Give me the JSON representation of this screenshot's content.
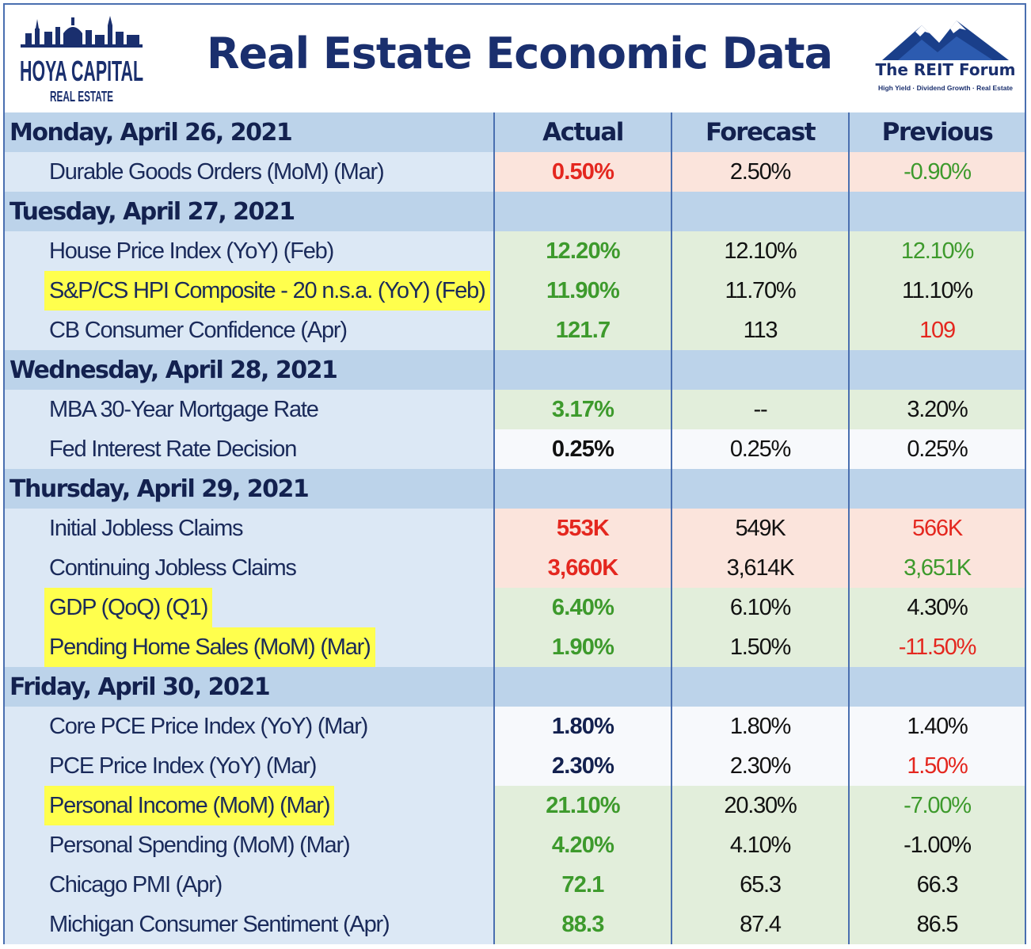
{
  "header": {
    "title": "Real Estate Economic Data",
    "left_logo": {
      "line1": "HOYA CAPITAL",
      "line2": "REAL ESTATE"
    },
    "right_logo": {
      "name": "The REIT Forum",
      "tagline": "High Yield · Dividend Growth · Real Estate"
    }
  },
  "columns": [
    "Actual",
    "Forecast",
    "Previous"
  ],
  "colors": {
    "red": "#e4271f",
    "green": "#3d9a2c",
    "navy": "#13214f",
    "highlight": "#ffff4d",
    "day_band": "#bcd3ea"
  },
  "days": [
    {
      "label": "Monday, April 26, 2021"
    },
    {
      "label": "Tuesday, April 27, 2021"
    },
    {
      "label": "Wednesday, April 28, 2021"
    },
    {
      "label": "Thursday, April 29, 2021"
    },
    {
      "label": "Friday, April 30, 2021"
    }
  ],
  "rows": [
    {
      "name": "Durable Goods Orders (MoM) (Mar)",
      "actual": "0.50%",
      "forecast": "2.50%",
      "previous": "-0.90%",
      "highlighted": false
    },
    {
      "name": "House Price Index (YoY) (Feb)",
      "actual": "12.20%",
      "forecast": "12.10%",
      "previous": "12.10%",
      "highlighted": false
    },
    {
      "name": "S&P/CS HPI Composite - 20 n.s.a. (YoY) (Feb)",
      "actual": "11.90%",
      "forecast": "11.70%",
      "previous": "11.10%",
      "highlighted": true
    },
    {
      "name": "CB Consumer Confidence (Apr)",
      "actual": "121.7",
      "forecast": "113",
      "previous": "109",
      "highlighted": false
    },
    {
      "name": "MBA 30-Year Mortgage Rate",
      "actual": "3.17%",
      "forecast": "--",
      "previous": "3.20%",
      "highlighted": false
    },
    {
      "name": "Fed Interest Rate Decision",
      "actual": "0.25%",
      "forecast": "0.25%",
      "previous": "0.25%",
      "highlighted": false
    },
    {
      "name": "Initial Jobless Claims",
      "actual": "553K",
      "forecast": "549K",
      "previous": "566K",
      "highlighted": false
    },
    {
      "name": "Continuing Jobless Claims",
      "actual": "3,660K",
      "forecast": "3,614K",
      "previous": "3,651K",
      "highlighted": false
    },
    {
      "name": "GDP (QoQ) (Q1)",
      "actual": "6.40%",
      "forecast": "6.10%",
      "previous": "4.30%",
      "highlighted": true
    },
    {
      "name": "Pending Home Sales (MoM) (Mar)",
      "actual": "1.90%",
      "forecast": "1.50%",
      "previous": "-11.50%",
      "highlighted": true
    },
    {
      "name": "Core PCE Price Index (YoY) (Mar)",
      "actual": "1.80%",
      "forecast": "1.80%",
      "previous": "1.40%",
      "highlighted": false
    },
    {
      "name": "PCE Price Index (YoY) (Mar)",
      "actual": "2.30%",
      "forecast": "2.30%",
      "previous": "1.50%",
      "highlighted": false
    },
    {
      "name": "Personal Income (MoM) (Mar)",
      "actual": "21.10%",
      "forecast": "20.30%",
      "previous": "-7.00%",
      "highlighted": true
    },
    {
      "name": "Personal Spending (MoM) (Mar)",
      "actual": "4.20%",
      "forecast": "4.10%",
      "previous": "-1.00%",
      "highlighted": false
    },
    {
      "name": "Chicago PMI (Apr)",
      "actual": "72.1",
      "forecast": "65.3",
      "previous": "66.3",
      "highlighted": false
    },
    {
      "name": "Michigan Consumer Sentiment (Apr)",
      "actual": "88.3",
      "forecast": "87.4",
      "previous": "86.5",
      "highlighted": false
    }
  ]
}
